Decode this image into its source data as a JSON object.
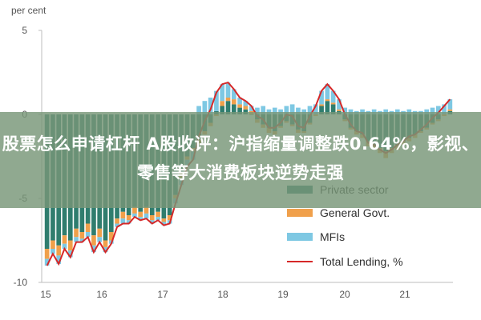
{
  "chart_data": {
    "type": "bar",
    "unit_label": "per cent",
    "x_tick_labels": [
      "15",
      "16",
      "17",
      "18",
      "19",
      "20",
      "21"
    ],
    "y_ticks": [
      5,
      0,
      -5,
      -10
    ],
    "ylim": [
      -10,
      5
    ],
    "grid": false,
    "legend_position": "bottom-right",
    "colors": {
      "private_sector": "#2f7d6e",
      "general_govt": "#f0a04b",
      "mfis": "#7ec8e3",
      "total_lending": "#d62828"
    },
    "series": [
      {
        "name": "Private sector",
        "values": [
          -8.0,
          -7.5,
          -7.8,
          -7.2,
          -7.5,
          -6.8,
          -7.0,
          -6.5,
          -7.2,
          -6.8,
          -7.5,
          -7.0,
          -6.2,
          -5.8,
          -6.0,
          -5.5,
          -5.8,
          -5.5,
          -6.0,
          -5.8,
          -6.2,
          -6.0,
          -4.8,
          -3.5,
          -2.5,
          -2.0,
          -1.5,
          -1.0,
          -0.5,
          0.2,
          0.5,
          0.8,
          0.6,
          0.4,
          0.3,
          0.0,
          -0.3,
          -0.6,
          -0.8,
          -1.0,
          -0.7,
          -0.4,
          -0.6,
          -0.9,
          -1.0,
          -0.5,
          0.0,
          0.5,
          0.8,
          0.6,
          0.2,
          -0.3,
          -0.8,
          -1.0,
          -1.2,
          -1.6,
          -1.8,
          -2.0,
          -2.2,
          -2.0,
          -1.8,
          -1.6,
          -1.4,
          -1.2,
          -1.0,
          -0.8,
          -0.5,
          -0.3,
          0.0,
          0.2
        ]
      },
      {
        "name": "General Govt.",
        "values": [
          -0.6,
          -0.5,
          -0.6,
          -0.5,
          -0.6,
          -0.5,
          -0.4,
          -0.5,
          -0.6,
          -0.5,
          -0.4,
          -0.5,
          -0.3,
          -0.4,
          -0.3,
          -0.4,
          -0.3,
          -0.4,
          -0.3,
          -0.3,
          -0.2,
          -0.3,
          -0.2,
          -0.3,
          -0.2,
          -0.2,
          -0.3,
          -0.2,
          -0.2,
          -0.1,
          0.3,
          0.2,
          0.3,
          0.2,
          0.2,
          0.2,
          -0.2,
          -0.2,
          -0.3,
          -0.2,
          -0.1,
          -0.1,
          -0.1,
          -0.2,
          -0.1,
          -0.1,
          -0.1,
          0.1,
          0.1,
          0.1,
          0.1,
          -0.1,
          -0.1,
          -0.2,
          -0.2,
          -0.3,
          -0.3,
          -0.3,
          -0.4,
          -0.3,
          -0.3,
          -0.2,
          -0.2,
          -0.2,
          -0.1,
          -0.1,
          -0.1,
          -0.1,
          -0.1,
          0.1
        ]
      },
      {
        "name": "MFIs",
        "values": [
          -0.4,
          -0.3,
          -0.5,
          -0.3,
          -0.4,
          -0.3,
          -0.2,
          -0.3,
          -0.4,
          -0.3,
          -0.3,
          -0.2,
          -0.2,
          -0.3,
          -0.2,
          -0.2,
          -0.2,
          -0.3,
          -0.2,
          -0.2,
          -0.2,
          -0.2,
          -0.3,
          -0.4,
          -0.4,
          -0.5,
          0.5,
          0.8,
          1.0,
          1.2,
          1.0,
          0.9,
          0.6,
          0.4,
          0.3,
          0.3,
          0.4,
          0.5,
          0.3,
          0.4,
          0.3,
          0.5,
          0.6,
          0.4,
          0.3,
          0.5,
          0.6,
          0.8,
          0.9,
          0.7,
          0.6,
          0.4,
          0.3,
          0.2,
          0.3,
          0.2,
          0.3,
          0.2,
          0.3,
          0.2,
          0.3,
          0.2,
          0.3,
          0.2,
          0.2,
          0.3,
          0.4,
          0.5,
          0.6,
          0.6
        ]
      },
      {
        "name": "Total Lending, %",
        "values": [
          -9.0,
          -8.3,
          -8.9,
          -8.0,
          -8.5,
          -7.6,
          -7.6,
          -7.3,
          -8.2,
          -7.6,
          -8.2,
          -7.7,
          -6.7,
          -6.5,
          -6.5,
          -6.1,
          -6.3,
          -6.2,
          -6.5,
          -6.3,
          -6.6,
          -6.5,
          -5.3,
          -4.2,
          -3.1,
          -2.7,
          -1.3,
          -0.4,
          0.3,
          1.3,
          1.8,
          1.9,
          1.5,
          1.0,
          0.8,
          0.5,
          -0.1,
          -0.3,
          -0.8,
          -0.8,
          -0.5,
          0.0,
          -0.1,
          -0.7,
          -0.8,
          -0.1,
          0.5,
          1.4,
          1.8,
          1.4,
          0.9,
          0.0,
          -0.6,
          -1.0,
          -1.1,
          -1.7,
          -1.8,
          -2.1,
          -2.3,
          -2.1,
          -1.8,
          -1.6,
          -1.3,
          -1.2,
          -0.9,
          -0.6,
          -0.2,
          0.1,
          0.5,
          0.9
        ]
      }
    ]
  },
  "banner": {
    "text": "股票怎么申请杠杆 A股收评：沪指缩量调整跌0.64%，影视、零售等大消费板块逆势走强"
  }
}
